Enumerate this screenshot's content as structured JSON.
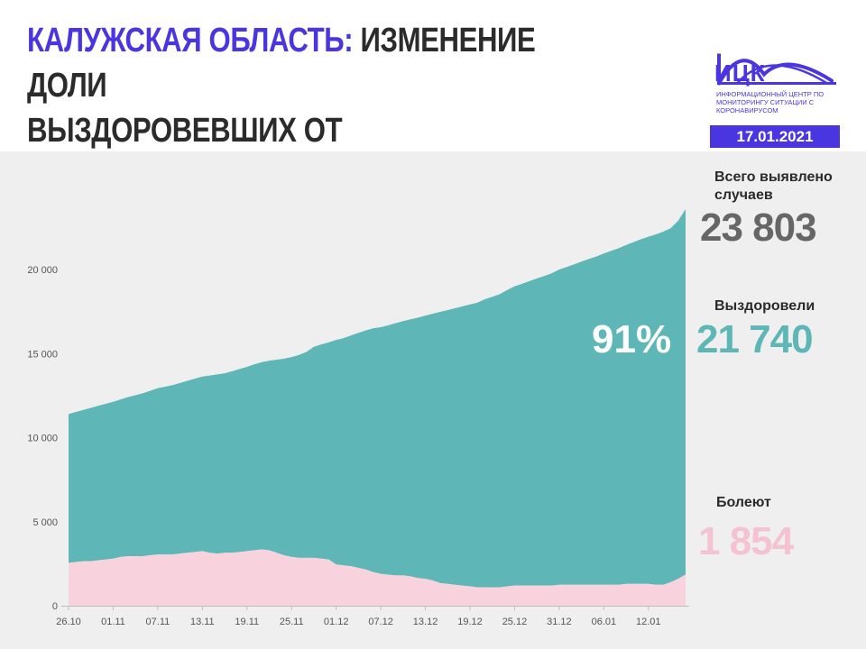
{
  "header": {
    "region": "КАЛУЖСКАЯ ОБЛАСТЬ:",
    "title_line1_rest": " ИЗМЕНЕНИЕ ДОЛИ",
    "title_line2": "ВЫЗДОРОВЕВШИХ ОТ КОРОНАВИРУСА"
  },
  "logo": {
    "abbr": "ИЦК",
    "subtitle": "ИНФОРМАЦИОННЫЙ ЦЕНТР ПО МОНИТОРИНГУ СИТУАЦИИ С КОРОНАВИРУСОМ",
    "icon": "bridge-wave-icon"
  },
  "date": "17.01.2021",
  "stats": {
    "total_label": "Всего выявлено случаев",
    "total_value": "23 803",
    "recovered_label": "Выздоровели",
    "recovered_value": "21 740",
    "sick_label": "Болеют",
    "sick_value": "1 854",
    "recovered_share": "91%"
  },
  "colors": {
    "accent": "#4a36e0",
    "recovered": "#5fb6b6",
    "sick": "#f8d3de",
    "total_value": "#666666",
    "sick_value": "#f5c2d2",
    "background": "#efefef"
  },
  "chart_data": {
    "type": "area",
    "x": [
      "26.10",
      "27.10",
      "28.10",
      "29.10",
      "30.10",
      "31.10",
      "01.11",
      "02.11",
      "03.11",
      "04.11",
      "05.11",
      "06.11",
      "07.11",
      "08.11",
      "09.11",
      "10.11",
      "11.11",
      "12.11",
      "13.11",
      "14.11",
      "15.11",
      "16.11",
      "17.11",
      "18.11",
      "19.11",
      "20.11",
      "21.11",
      "22.11",
      "23.11",
      "24.11",
      "25.11",
      "26.11",
      "27.11",
      "28.11",
      "29.11",
      "30.11",
      "01.12",
      "02.12",
      "03.12",
      "04.12",
      "05.12",
      "06.12",
      "07.12",
      "08.12",
      "09.12",
      "10.12",
      "11.12",
      "12.12",
      "13.12",
      "14.12",
      "15.12",
      "16.12",
      "17.12",
      "18.12",
      "19.12",
      "20.12",
      "21.12",
      "22.12",
      "23.12",
      "24.12",
      "25.12",
      "26.12",
      "27.12",
      "28.12",
      "29.12",
      "30.12",
      "31.12",
      "01.01",
      "02.01",
      "03.01",
      "04.01",
      "05.01",
      "06.01",
      "07.01",
      "08.01",
      "09.01",
      "10.01",
      "11.01",
      "12.01",
      "13.01",
      "14.01",
      "15.01",
      "16.01",
      "17.01"
    ],
    "x_tick_labels": [
      "26.10",
      "01.11",
      "07.11",
      "13.11",
      "19.11",
      "25.11",
      "01.12",
      "07.12",
      "13.12",
      "19.12",
      "25.12",
      "31.12",
      "06.01",
      "12.01"
    ],
    "y_tick_labels": [
      "0",
      "5 000",
      "10 000",
      "15 000",
      "20 000"
    ],
    "ylim": [
      0,
      25000
    ],
    "grid": false,
    "series": [
      {
        "name": "Болеют",
        "values": [
          2550,
          2600,
          2650,
          2650,
          2700,
          2750,
          2800,
          2900,
          2950,
          2950,
          2950,
          3000,
          3050,
          3050,
          3050,
          3100,
          3150,
          3200,
          3250,
          3150,
          3100,
          3150,
          3150,
          3200,
          3250,
          3300,
          3350,
          3300,
          3150,
          3000,
          2900,
          2850,
          2850,
          2850,
          2800,
          2750,
          2450,
          2400,
          2350,
          2250,
          2150,
          2000,
          1900,
          1850,
          1800,
          1800,
          1750,
          1650,
          1600,
          1500,
          1350,
          1300,
          1250,
          1200,
          1150,
          1100,
          1100,
          1100,
          1100,
          1150,
          1200,
          1200,
          1200,
          1200,
          1200,
          1200,
          1250,
          1250,
          1250,
          1250,
          1250,
          1250,
          1250,
          1250,
          1250,
          1300,
          1300,
          1300,
          1300,
          1250,
          1250,
          1400,
          1600,
          1854
        ]
      },
      {
        "name": "Выздоровели",
        "values": [
          8850,
          8930,
          9000,
          9120,
          9200,
          9260,
          9330,
          9370,
          9460,
          9570,
          9690,
          9790,
          9890,
          9980,
          10070,
          10150,
          10230,
          10310,
          10380,
          10540,
          10660,
          10680,
          10800,
          10880,
          10960,
          11060,
          11140,
          11280,
          11490,
          11700,
          11890,
          12070,
          12250,
          12550,
          12740,
          12920,
          13360,
          13520,
          13730,
          13980,
          14230,
          14510,
          14670,
          14830,
          15010,
          15130,
          15290,
          15490,
          15660,
          15870,
          16130,
          16290,
          16450,
          16610,
          16770,
          16930,
          17130,
          17280,
          17430,
          17630,
          17800,
          17950,
          18110,
          18270,
          18420,
          18580,
          18750,
          18900,
          19060,
          19220,
          19380,
          19530,
          19700,
          19860,
          20020,
          20160,
          20330,
          20500,
          20650,
          20840,
          21000,
          21060,
          21300,
          21740
        ]
      }
    ],
    "total": [
      11400,
      11530,
      11650,
      11770,
      11900,
      12010,
      12130,
      12270,
      12410,
      12520,
      12640,
      12790,
      12940,
      13030,
      13120,
      13250,
      13380,
      13510,
      13630,
      13690,
      13760,
      13830,
      13950,
      14080,
      14210,
      14360,
      14490,
      14580,
      14640,
      14700,
      14790,
      14920,
      15100,
      15400,
      15540,
      15670,
      15810,
      15920,
      16080,
      16230,
      16380,
      16510,
      16570,
      16680,
      16810,
      16930,
      17040,
      17140,
      17260,
      17370,
      17480,
      17590,
      17700,
      17810,
      17920,
      18030,
      18230,
      18380,
      18530,
      18780,
      18990,
      19150,
      19310,
      19470,
      19620,
      19780,
      20000,
      20150,
      20310,
      20470,
      20630,
      20780,
      20950,
      21110,
      21270,
      21460,
      21630,
      21800,
      21950,
      22090,
      22250,
      22460,
      22900,
      23594
    ]
  }
}
